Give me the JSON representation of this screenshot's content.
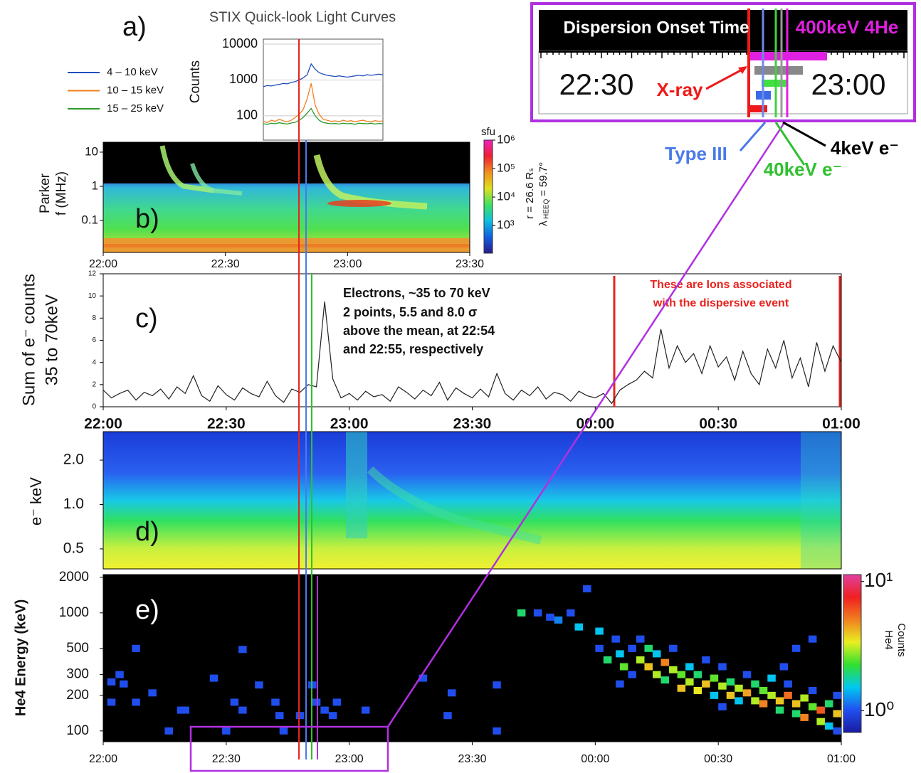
{
  "chart_data": [
    {
      "type": "line",
      "panel_label": "a)",
      "title": "STIX Quick-look Light Curves",
      "ylabel": "Counts",
      "log_y": true,
      "ylim": [
        21,
        13800
      ],
      "yticks": [
        100,
        1000,
        10000
      ],
      "grid": true,
      "series": [
        {
          "name": "4 – 10 keV",
          "color": "#1f4fbf",
          "values": [
            650,
            700,
            680,
            720,
            750,
            800,
            780,
            850,
            900,
            1000,
            1150,
            1400,
            2800,
            2000,
            1600,
            1450,
            1350,
            1300,
            1250,
            1300,
            1250,
            1200,
            1250,
            1300,
            1350,
            1300,
            1400,
            1350,
            1400,
            1450,
            1400
          ]
        },
        {
          "name": "10 – 15 keV",
          "color": "#f07f1e",
          "values": [
            70,
            65,
            75,
            70,
            80,
            72,
            68,
            75,
            90,
            110,
            150,
            300,
            800,
            200,
            110,
            80,
            75,
            70,
            72,
            68,
            75,
            70,
            73,
            68,
            72,
            75,
            70,
            68,
            73,
            70,
            72
          ]
        },
        {
          "name": "15 – 25 keV",
          "color": "#2a9a2a",
          "values": [
            60,
            58,
            62,
            60,
            64,
            61,
            59,
            63,
            66,
            75,
            90,
            120,
            160,
            100,
            75,
            65,
            62,
            60,
            61,
            59,
            62,
            60,
            61,
            58,
            62,
            61,
            60,
            62,
            59,
            61,
            60
          ]
        }
      ]
    },
    {
      "type": "spectrogram",
      "panel_label": "b)",
      "ylabel": [
        "Parker",
        "f (MHz)"
      ],
      "log_y": true,
      "ylim": [
        0.0116,
        19.5
      ],
      "yticks": [
        0.1,
        1,
        10
      ],
      "xlim": [
        "22:00",
        "23:30"
      ],
      "xticks": [
        "22:00",
        "22:30",
        "23:00",
        "23:30"
      ],
      "annotations": [
        "r = 26.6 Rₛ",
        "λ",
        "HEEQ",
        "= 59.7°"
      ],
      "colorbar": {
        "label": "sfu",
        "log": true,
        "ylim": [
          107,
          1000000
        ],
        "yticks": [
          {
            "value": 1000,
            "label": "10³"
          },
          {
            "value": 10000,
            "label": "10⁴"
          },
          {
            "value": 100000,
            "label": "10⁵"
          },
          {
            "value": 1000000,
            "label": "10⁶"
          }
        ],
        "colors": [
          "#2a1a8a",
          "#1060e0",
          "#10c0e0",
          "#40e060",
          "#e0e020",
          "#f09020",
          "#f02030",
          "#f020c0"
        ]
      }
    },
    {
      "type": "line",
      "panel_label": "c)",
      "ylabel": [
        "Sum of e⁻ counts",
        "35 to 70keV"
      ],
      "color": "#222222",
      "ylim": [
        0,
        12
      ],
      "yticks": [
        0,
        2,
        4,
        6,
        8,
        10,
        12
      ],
      "xlim": [
        "22:00",
        "01:00"
      ],
      "xticks": [
        "22:00",
        "22:30",
        "23:00",
        "23:30",
        "00:00",
        "00:30",
        "01:00"
      ],
      "x": [
        "22:00",
        "22:02",
        "22:04",
        "22:06",
        "22:08",
        "22:10",
        "22:12",
        "22:14",
        "22:16",
        "22:18",
        "22:20",
        "22:22",
        "22:24",
        "22:26",
        "22:28",
        "22:30",
        "22:32",
        "22:34",
        "22:36",
        "22:38",
        "22:40",
        "22:42",
        "22:44",
        "22:46",
        "22:48",
        "22:50",
        "22:52",
        "22:54",
        "22:56",
        "22:58",
        "23:00",
        "23:02",
        "23:04",
        "23:06",
        "23:08",
        "23:10",
        "23:12",
        "23:14",
        "23:16",
        "23:18",
        "23:20",
        "23:22",
        "23:24",
        "23:26",
        "23:28",
        "23:30",
        "23:32",
        "23:34",
        "23:36",
        "23:38",
        "23:40",
        "23:42",
        "23:44",
        "23:46",
        "23:48",
        "23:50",
        "23:52",
        "23:54",
        "23:56",
        "23:58",
        "00:00",
        "00:02",
        "00:04",
        "00:06",
        "00:08",
        "00:10",
        "00:12",
        "00:14",
        "00:16",
        "00:18",
        "00:20",
        "00:22",
        "00:24",
        "00:26",
        "00:28",
        "00:30",
        "00:32",
        "00:34",
        "00:36",
        "00:38",
        "00:40",
        "00:42",
        "00:44",
        "00:46",
        "00:48",
        "00:50",
        "00:52",
        "00:54",
        "00:56",
        "00:58",
        "01:00"
      ],
      "values": [
        1.5,
        0.8,
        1.2,
        1.5,
        0.6,
        1.3,
        1.0,
        1.6,
        0.7,
        1.8,
        1.2,
        2.8,
        1.0,
        0.5,
        1.9,
        1.1,
        0.6,
        1.7,
        1.2,
        0.9,
        2.3,
        1.0,
        0.4,
        1.6,
        1.3,
        2.0,
        1.8,
        9.5,
        2.5,
        0.8,
        1.2,
        0.6,
        1.4,
        0.9,
        1.1,
        0.5,
        1.8,
        1.3,
        0.7,
        1.5,
        1.0,
        2.2,
        0.6,
        1.7,
        1.2,
        0.8,
        1.6,
        0.9,
        3.0,
        1.2,
        0.6,
        1.5,
        1.0,
        1.8,
        0.7,
        1.3,
        1.1,
        0.5,
        1.4,
        1.0,
        0.8,
        1.2,
        0.3,
        1.5,
        2.0,
        2.4,
        3.2,
        2.6,
        7.0,
        3.5,
        5.5,
        4.0,
        4.8,
        3.0,
        5.5,
        3.6,
        4.5,
        2.4,
        5.0,
        3.0,
        2.0,
        5.2,
        3.5,
        6.0,
        2.6,
        4.4,
        1.8,
        5.8,
        3.2,
        5.5,
        4.0
      ],
      "annotations": [
        "Electrons, ~35 to 70 keV",
        "2 points, 5.5 and 8.0 σ",
        "above the mean, at 22:54",
        "and 22:55, respectively"
      ],
      "red_annotations": [
        "These are Ions associated",
        "with the dispersive event"
      ]
    },
    {
      "type": "spectrogram",
      "panel_label": "d)",
      "ylabel": "e⁻ keV",
      "log_y": true,
      "ylim": [
        0.366,
        3.12
      ],
      "yticks": [
        0.5,
        {
          "value": 1,
          "label": "1.0"
        },
        {
          "value": 2,
          "label": "2.0"
        }
      ]
    },
    {
      "type": "scatter",
      "panel_label": "e)",
      "ylabel": "He4 Energy (keV)",
      "log_y": true,
      "ylim": [
        81,
        2110
      ],
      "yticks": [
        100,
        200,
        300,
        500,
        1000,
        2000
      ],
      "xlim": [
        "22:00",
        "01:00"
      ],
      "xticks": [
        "22:00",
        "22:30",
        "23:00",
        "23:30",
        "00:00",
        "00:30",
        "01:00"
      ],
      "x": [
        "22:07",
        "22:03",
        "22:01",
        "22:04",
        "22:01",
        "22:07",
        "22:11",
        "22:15",
        "22:18",
        "22:19",
        "22:26",
        "22:29",
        "22:33",
        "22:31",
        "22:33",
        "22:37",
        "22:41",
        "22:42",
        "22:43",
        "22:47",
        "22:50",
        "22:51",
        "22:53",
        "22:55",
        "22:56",
        "23:03",
        "23:17",
        "23:24",
        "23:23",
        "23:35",
        "23:35",
        "23:41",
        "23:45",
        "23:48",
        "23:53",
        "23:57",
        "23:55",
        "23:50",
        "00:00",
        "00:00",
        "00:02",
        "00:04",
        "00:05",
        "00:06",
        "00:08",
        "00:08",
        "00:10",
        "00:10",
        "00:12",
        "00:12",
        "00:14",
        "00:14",
        "00:16",
        "00:16",
        "00:18",
        "00:18",
        "00:20",
        "00:20",
        "00:22",
        "00:22",
        "00:24",
        "00:24",
        "00:26",
        "00:26",
        "00:28",
        "00:28",
        "00:30",
        "00:30",
        "00:32",
        "00:32",
        "00:34",
        "00:34",
        "00:36",
        "00:36",
        "00:38",
        "00:38",
        "00:40",
        "00:40",
        "00:42",
        "00:42",
        "00:44",
        "00:44",
        "00:46",
        "00:46",
        "00:48",
        "00:48",
        "00:50",
        "00:50",
        "00:52",
        "00:52",
        "00:54",
        "00:54",
        "00:56",
        "00:56",
        "00:58",
        "00:58",
        "00:58",
        "00:30",
        "00:05",
        "00:45",
        "00:48",
        "00:52"
      ],
      "values": [
        500,
        300,
        260,
        250,
        175,
        175,
        210,
        100,
        150,
        150,
        280,
        100,
        490,
        175,
        150,
        245,
        175,
        135,
        100,
        135,
        245,
        175,
        150,
        135,
        175,
        150,
        280,
        210,
        135,
        245,
        100,
        1000,
        1000,
        920,
        1000,
        1600,
        760,
        870,
        500,
        700,
        400,
        600,
        450,
        350,
        500,
        300,
        400,
        600,
        350,
        500,
        300,
        450,
        380,
        270,
        330,
        500,
        300,
        230,
        350,
        260,
        300,
        220,
        250,
        400,
        280,
        200,
        240,
        350,
        260,
        200,
        230,
        180,
        210,
        300,
        250,
        180,
        220,
        170,
        200,
        280,
        180,
        150,
        200,
        250,
        170,
        140,
        190,
        130,
        160,
        220,
        150,
        120,
        170,
        110,
        140,
        200,
        100,
        160,
        250,
        350,
        500,
        600
      ],
      "counts": [
        1,
        1,
        1,
        1,
        1,
        1,
        1,
        1,
        1,
        1,
        1,
        1,
        1,
        1,
        1,
        1,
        1,
        1,
        1,
        1,
        1,
        1,
        1,
        1,
        1,
        1,
        1,
        1,
        1,
        1,
        1,
        2,
        1,
        1,
        1,
        1,
        1.5,
        1.2,
        1,
        1.5,
        2,
        1,
        1.5,
        2.5,
        1,
        1,
        3,
        1,
        4,
        2,
        3,
        1.5,
        5,
        2,
        3,
        1,
        2.5,
        4,
        1.5,
        3,
        2,
        3.5,
        4,
        1,
        2.5,
        1.5,
        3,
        1,
        2,
        4,
        3,
        1.5,
        4.5,
        1,
        2,
        3,
        2.5,
        5,
        3,
        1.5,
        4,
        2,
        5.5,
        1,
        4,
        2,
        3,
        5,
        2.5,
        1,
        6,
        3,
        2,
        1.5,
        4,
        1,
        1,
        1,
        1,
        1,
        1,
        1
      ],
      "colorbar": {
        "label": [
          "He4",
          "Counts"
        ],
        "log": true,
        "ylim": [
          0.68,
          11.3
        ],
        "yticks": [
          {
            "value": 1,
            "label": "10⁰"
          },
          {
            "value": 10,
            "label": "10¹"
          }
        ],
        "colors": [
          "#1a1aa0",
          "#2050f0",
          "#00c8f0",
          "#30e030",
          "#e8f020",
          "#f08020",
          "#f02020",
          "#e040a0"
        ]
      }
    }
  ],
  "inset": {
    "title": "Dispersion Onset Time",
    "species": "400keV 4He",
    "ticks": [
      "22:30",
      "23:00"
    ],
    "labels": [
      "X-ray",
      "Type III",
      "4keV e⁻",
      "40keV e⁻"
    ]
  }
}
